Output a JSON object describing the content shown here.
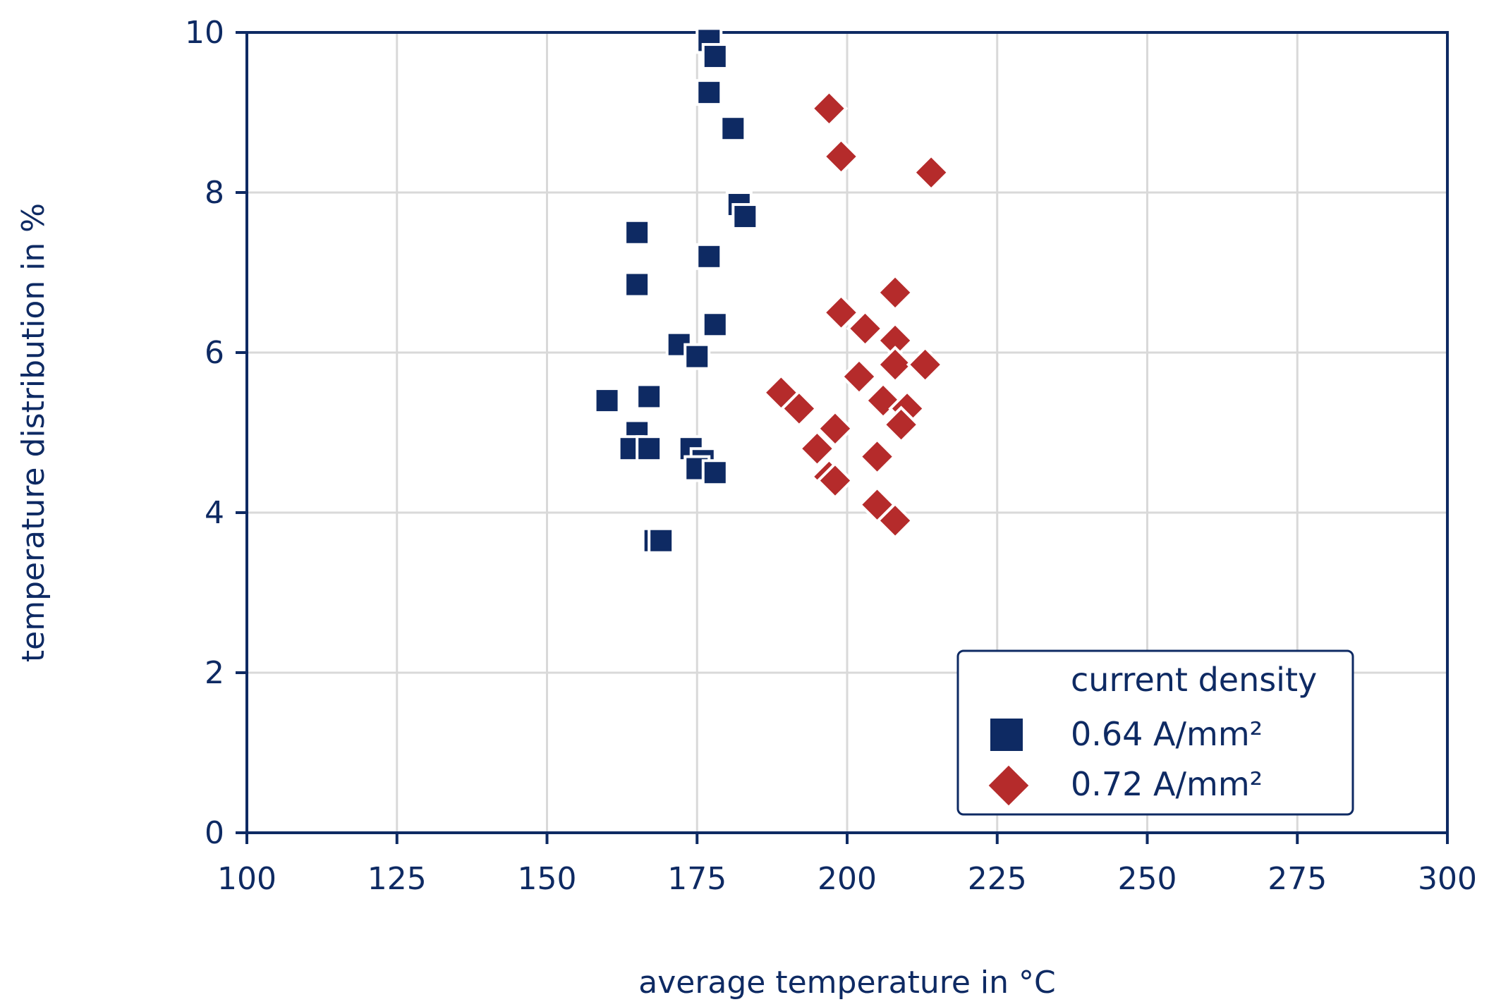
{
  "chart_data": {
    "type": "scatter",
    "title": "",
    "xlabel": "average temperature in °C",
    "ylabel": "temperature distribution in %",
    "xlim": [
      100,
      300
    ],
    "ylim": [
      0,
      10
    ],
    "xticks": [
      "100",
      "125",
      "150",
      "175",
      "200",
      "225",
      "250",
      "275",
      "300"
    ],
    "yticks": [
      "0",
      "2",
      "4",
      "6",
      "8",
      "10"
    ],
    "grid": true,
    "legend": {
      "title": "current density",
      "position": "bottom-right"
    },
    "series": [
      {
        "name": "0.64 A/mm²",
        "marker": "square",
        "color": "#0e2a63",
        "points": [
          [
            177,
            9.9
          ],
          [
            178,
            9.7
          ],
          [
            177,
            9.25
          ],
          [
            181,
            8.8
          ],
          [
            182,
            7.85
          ],
          [
            183,
            7.7
          ],
          [
            165,
            7.5
          ],
          [
            177,
            7.2
          ],
          [
            165,
            6.85
          ],
          [
            178,
            6.35
          ],
          [
            172,
            6.1
          ],
          [
            175,
            5.95
          ],
          [
            160,
            5.4
          ],
          [
            167,
            5.45
          ],
          [
            165,
            5.0
          ],
          [
            164,
            4.8
          ],
          [
            167,
            4.8
          ],
          [
            174,
            4.8
          ],
          [
            176,
            4.65
          ],
          [
            175,
            4.55
          ],
          [
            178,
            4.5
          ],
          [
            168,
            3.65
          ],
          [
            169,
            3.65
          ]
        ]
      },
      {
        "name": "0.72 A/mm²",
        "marker": "diamond",
        "color": "#b52b2b",
        "points": [
          [
            197,
            9.05
          ],
          [
            199,
            8.45
          ],
          [
            214,
            8.25
          ],
          [
            208,
            6.75
          ],
          [
            199,
            6.5
          ],
          [
            203,
            6.3
          ],
          [
            208,
            6.15
          ],
          [
            208,
            5.85
          ],
          [
            213,
            5.85
          ],
          [
            202,
            5.7
          ],
          [
            189,
            5.5
          ],
          [
            206,
            5.4
          ],
          [
            192,
            5.3
          ],
          [
            210,
            5.3
          ],
          [
            209,
            5.1
          ],
          [
            198,
            5.05
          ],
          [
            195,
            4.8
          ],
          [
            205,
            4.7
          ],
          [
            197,
            4.45
          ],
          [
            198,
            4.4
          ],
          [
            205,
            4.1
          ],
          [
            208,
            3.9
          ]
        ]
      }
    ]
  }
}
